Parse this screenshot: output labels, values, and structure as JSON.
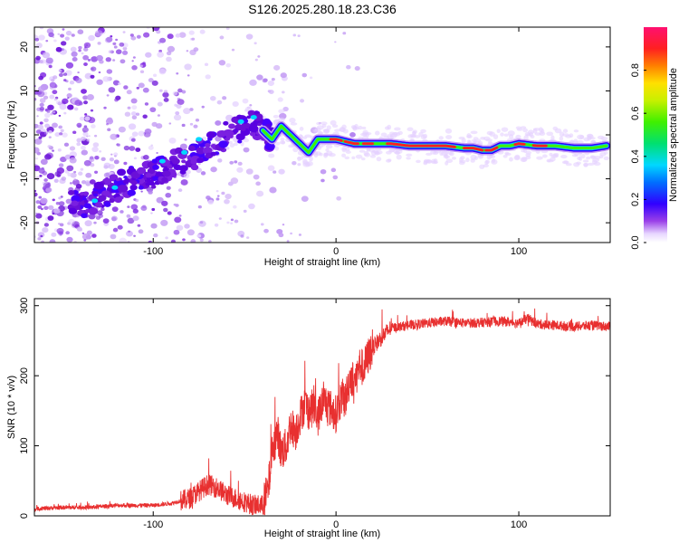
{
  "title": "S126.2025.280.18.23.C36",
  "chart_data": [
    {
      "type": "heatmap",
      "name": "spectrogram",
      "xlabel": "Height of straight line (km)",
      "ylabel": "Frequency (Hz)",
      "xlim": [
        -165,
        150
      ],
      "ylim": [
        -24.5,
        24.5
      ],
      "xticks": [
        -100,
        0,
        100
      ],
      "yticks": [
        -20,
        -10,
        0,
        10,
        20
      ],
      "colorbar": {
        "label": "Normalized spectral amplitude",
        "range": [
          0,
          1
        ],
        "ticks": [
          0.0,
          0.2,
          0.4,
          0.6,
          0.8
        ]
      },
      "ridge": {
        "x": [
          -140,
          -130,
          -120,
          -110,
          -100,
          -90,
          -80,
          -70,
          -60,
          -50,
          -45,
          -40,
          -35,
          -30,
          -25,
          -20,
          -15,
          -10,
          -5,
          0,
          10,
          20,
          30,
          40,
          50,
          60,
          70,
          75,
          80,
          85,
          90,
          95,
          100,
          110,
          120,
          130,
          140,
          148
        ],
        "y": [
          -16,
          -14,
          -12,
          -10,
          -9,
          -7,
          -5,
          -3,
          0,
          2,
          3,
          1,
          -1,
          2,
          0,
          -2,
          -4,
          -1,
          -1,
          -1,
          -2,
          -2,
          -2,
          -2.5,
          -2.5,
          -2.5,
          -3,
          -3,
          -3.5,
          -3.5,
          -2.5,
          -2.5,
          -2,
          -2.5,
          -2.5,
          -3,
          -3,
          -2.5
        ]
      }
    },
    {
      "type": "line",
      "name": "snr",
      "xlabel": "Height of straight line (km)",
      "ylabel": "SNR (10 * v/v)",
      "xlim": [
        -165,
        150
      ],
      "ylim": [
        0,
        310
      ],
      "xticks": [
        -100,
        0,
        100
      ],
      "yticks": [
        0,
        100,
        200,
        300
      ],
      "color": "#e83030",
      "series": [
        {
          "name": "SNR",
          "x": [
            -165,
            -150,
            -135,
            -120,
            -110,
            -100,
            -90,
            -80,
            -75,
            -70,
            -65,
            -60,
            -55,
            -50,
            -45,
            -40,
            -37,
            -35,
            -32,
            -30,
            -27,
            -25,
            -22,
            -20,
            -17,
            -15,
            -12,
            -10,
            -7,
            -5,
            -2,
            0,
            3,
            5,
            8,
            10,
            13,
            15,
            18,
            20,
            25,
            30,
            40,
            50,
            60,
            70,
            80,
            90,
            100,
            105,
            110,
            120,
            130,
            140,
            150
          ],
          "values": [
            10,
            12,
            12,
            15,
            15,
            15,
            18,
            25,
            35,
            45,
            40,
            30,
            25,
            20,
            15,
            15,
            40,
            90,
            120,
            90,
            100,
            130,
            120,
            140,
            160,
            150,
            155,
            140,
            165,
            160,
            150,
            145,
            170,
            165,
            200,
            190,
            215,
            210,
            230,
            240,
            255,
            268,
            272,
            275,
            278,
            275,
            276,
            278,
            275,
            282,
            274,
            272,
            270,
            272,
            270
          ]
        }
      ]
    }
  ]
}
